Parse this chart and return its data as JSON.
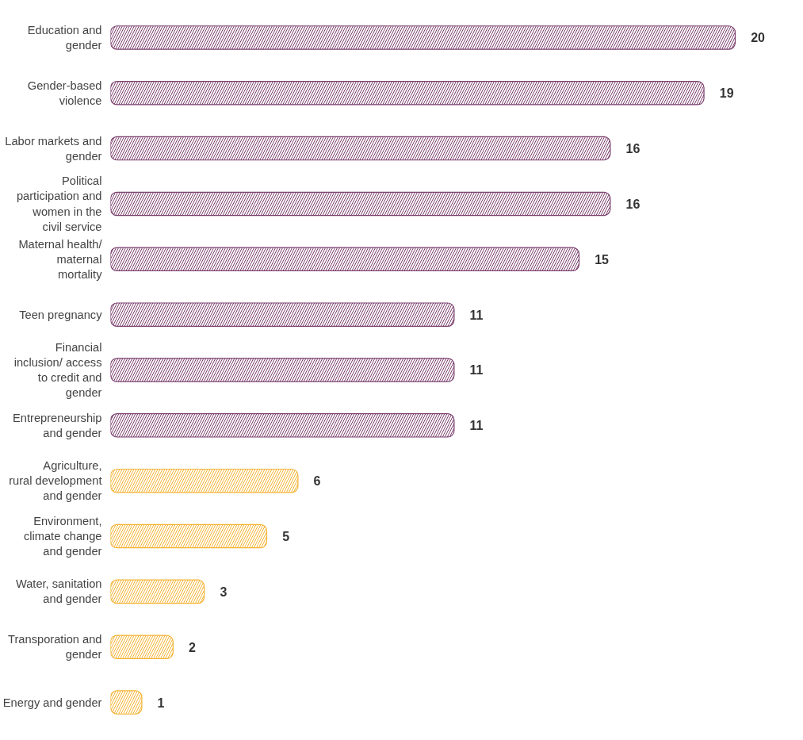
{
  "chart_data": {
    "type": "bar",
    "orientation": "horizontal",
    "data_labels": true,
    "categories": [
      "Education and gender",
      "Gender-based violence",
      "Labor markets and gender",
      "Political participation and women in the civil service",
      "Maternal health/ maternal mortality",
      "Teen pregnancy",
      "Financial inclusion/ access to credit and gender",
      "Entrepreneurship and gender",
      "Agriculture, rural development and gender",
      "Environment, climate change and gender",
      "Water, sanitation and gender",
      "Transporation and gender",
      "Energy and gender"
    ],
    "values": [
      20,
      19,
      16,
      16,
      15,
      11,
      11,
      11,
      6,
      5,
      3,
      2,
      1
    ],
    "colors": [
      "#7b3f6e",
      "#7b3f6e",
      "#7b3f6e",
      "#7b3f6e",
      "#7b3f6e",
      "#7b3f6e",
      "#7b3f6e",
      "#7b3f6e",
      "#f5b335",
      "#f5b335",
      "#f5b335",
      "#f5b335",
      "#f5b335"
    ]
  }
}
